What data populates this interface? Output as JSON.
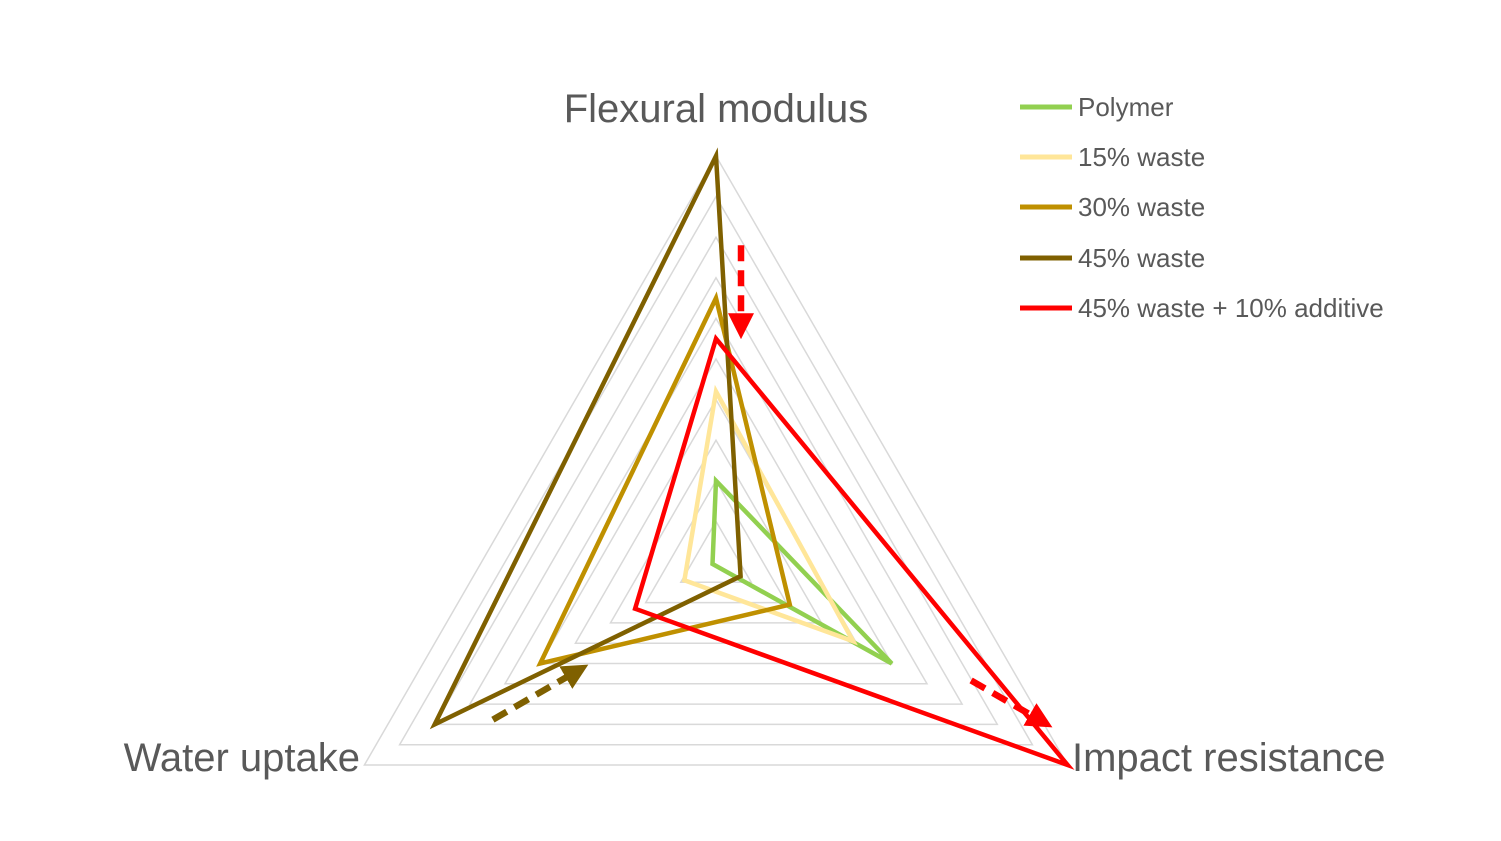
{
  "chart_data": {
    "type": "radar",
    "axes": [
      "Flexural modulus",
      "Impact resistance",
      "Water uptake"
    ],
    "range": [
      0,
      10
    ],
    "gridlines": 10,
    "grid": true,
    "legend_position": "top-right",
    "series": [
      {
        "name": "Polymer",
        "color": "#92D050",
        "values": [
          2.0,
          5.0,
          0.1
        ]
      },
      {
        "name": "15% waste",
        "color": "#FFE699",
        "values": [
          4.2,
          3.9,
          0.9
        ]
      },
      {
        "name": "30% waste",
        "color": "#BF9000",
        "values": [
          6.5,
          2.1,
          5.0
        ]
      },
      {
        "name": "45% waste",
        "color": "#7F6000",
        "values": [
          10.0,
          0.7,
          8.0
        ]
      },
      {
        "name": "45% waste + 10% additive",
        "color": "#FF0000",
        "values": [
          5.5,
          10.0,
          2.3
        ]
      }
    ],
    "arrows": [
      {
        "color": "#FF0000",
        "from": {
          "axis": 0,
          "value": 7.8,
          "offset": 1
        },
        "to": {
          "axis": 0,
          "value": 6.0,
          "offset": 1
        }
      },
      {
        "color": "#FF0000",
        "from": {
          "axis": 1,
          "value": 6.9,
          "offset": -1
        },
        "to": {
          "axis": 1,
          "value": 8.7,
          "offset": -1
        }
      },
      {
        "color": "#7F6000",
        "from": {
          "axis": 2,
          "value": 6.7,
          "offset": -1
        },
        "to": {
          "axis": 2,
          "value": 4.5,
          "offset": -1
        }
      }
    ]
  }
}
